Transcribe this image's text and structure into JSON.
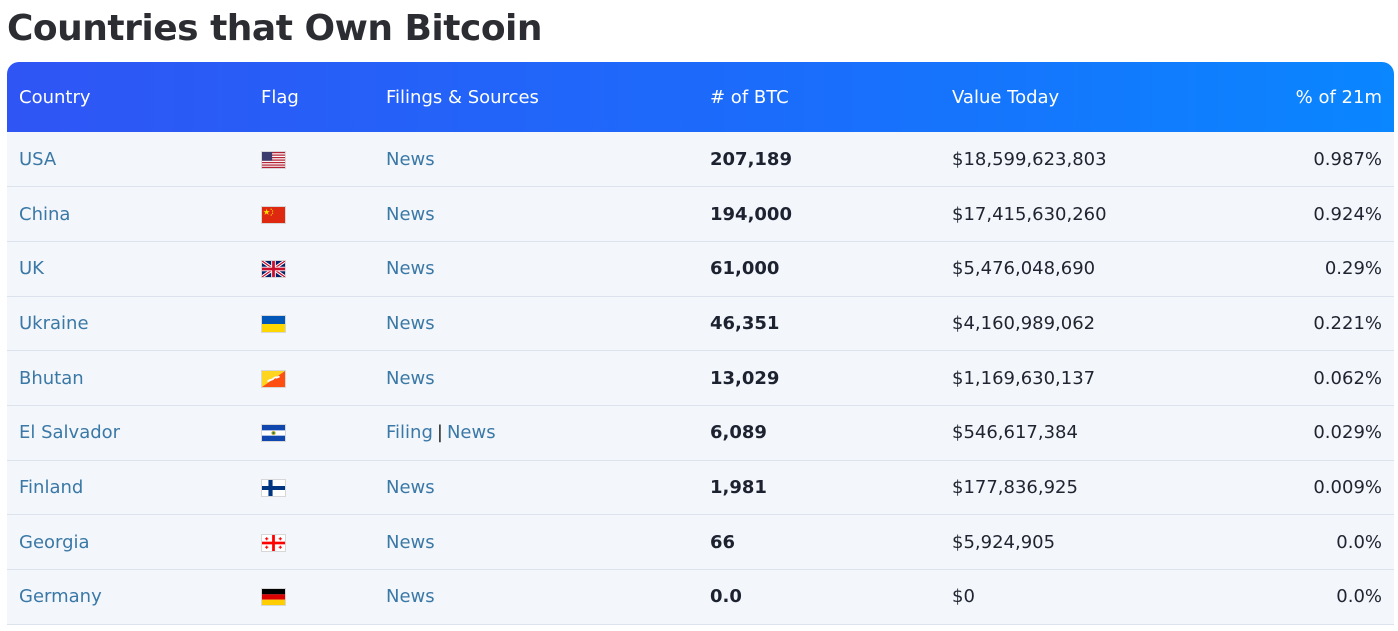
{
  "page": {
    "title": "Countries that Own Bitcoin"
  },
  "table": {
    "headers": {
      "country": "Country",
      "flag": "Flag",
      "sources": "Filings & Sources",
      "btc": "# of BTC",
      "value": "Value Today",
      "percent": "% of 21m"
    },
    "rows": [
      {
        "country": "USA",
        "flag_icon": "us-flag-icon",
        "filing": "",
        "news": "News",
        "btc": "207,189",
        "value": "$18,599,623,803",
        "percent": "0.987%"
      },
      {
        "country": "China",
        "flag_icon": "china-flag-icon",
        "filing": "",
        "news": "News",
        "btc": "194,000",
        "value": "$17,415,630,260",
        "percent": "0.924%"
      },
      {
        "country": "UK",
        "flag_icon": "uk-flag-icon",
        "filing": "",
        "news": "News",
        "btc": "61,000",
        "value": "$5,476,048,690",
        "percent": "0.29%"
      },
      {
        "country": "Ukraine",
        "flag_icon": "ukraine-flag-icon",
        "filing": "",
        "news": "News",
        "btc": "46,351",
        "value": "$4,160,989,062",
        "percent": "0.221%"
      },
      {
        "country": "Bhutan",
        "flag_icon": "bhutan-flag-icon",
        "filing": "",
        "news": "News",
        "btc": "13,029",
        "value": "$1,169,630,137",
        "percent": "0.062%"
      },
      {
        "country": "El Salvador",
        "flag_icon": "el-salvador-flag-icon",
        "filing": "Filing",
        "separator": "|",
        "news": "News",
        "btc": "6,089",
        "value": "$546,617,384",
        "percent": "0.029%"
      },
      {
        "country": "Finland",
        "flag_icon": "finland-flag-icon",
        "filing": "",
        "news": "News",
        "btc": "1,981",
        "value": "$177,836,925",
        "percent": "0.009%"
      },
      {
        "country": "Georgia",
        "flag_icon": "georgia-flag-icon",
        "filing": "",
        "news": "News",
        "btc": "66",
        "value": "$5,924,905",
        "percent": "0.0%"
      },
      {
        "country": "Germany",
        "flag_icon": "germany-flag-icon",
        "filing": "",
        "news": "News",
        "btc": "0.0",
        "value": "$0",
        "percent": "0.0%"
      }
    ]
  },
  "colors": {
    "header_gradient_start": "#2f55f5",
    "header_gradient_end": "#0a86ff",
    "link": "#3a78a6",
    "row_bg": "#f3f6fb"
  }
}
